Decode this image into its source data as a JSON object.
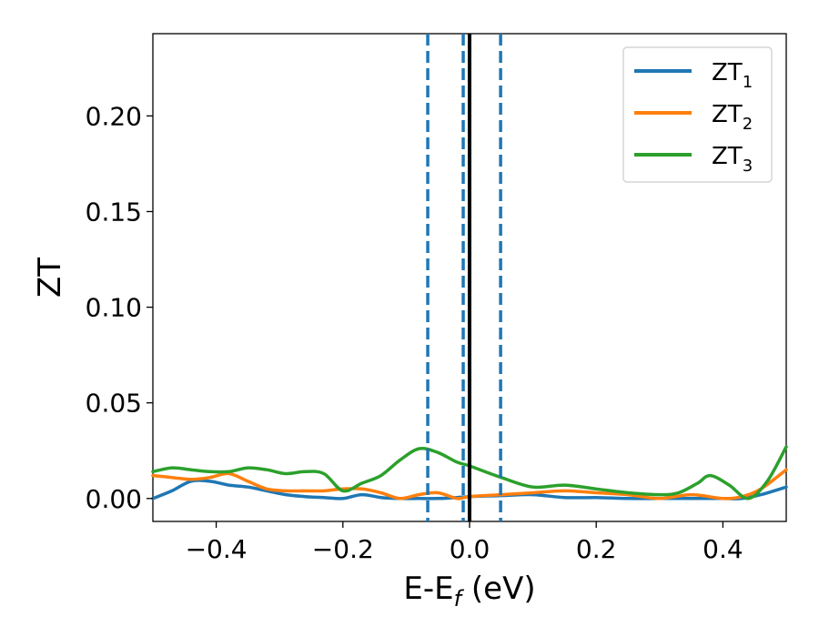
{
  "chart_data": {
    "type": "line",
    "xlabel": "E-E",
    "xlabel_subscript": "f",
    "xlabel_unit": " (eV)",
    "ylabel": "ZT",
    "xlim": [
      -0.5,
      0.5
    ],
    "ylim": [
      -0.012,
      0.243
    ],
    "xticks": [
      -0.4,
      -0.2,
      0.0,
      0.2,
      0.4
    ],
    "xtick_labels": [
      "−0.4",
      "−0.2",
      "0.0",
      "0.2",
      "0.4"
    ],
    "yticks": [
      0.0,
      0.05,
      0.1,
      0.15,
      0.2
    ],
    "ytick_labels": [
      "0.00",
      "0.05",
      "0.10",
      "0.15",
      "0.20"
    ],
    "grid": false,
    "legend_position": "top-right",
    "vlines": [
      {
        "x": -0.066,
        "style": "dashed",
        "color": "#1f77b4"
      },
      {
        "x": -0.01,
        "style": "dashed",
        "color": "#1f77b4"
      },
      {
        "x": 0.049,
        "style": "dashed",
        "color": "#1f77b4"
      },
      {
        "x": 0.0,
        "style": "solid",
        "color": "#000000"
      }
    ],
    "series": [
      {
        "name": "ZT",
        "subscript": "1",
        "color": "#1f77b4",
        "x": [
          -0.5,
          -0.47,
          -0.44,
          -0.41,
          -0.38,
          -0.35,
          -0.32,
          -0.29,
          -0.26,
          -0.23,
          -0.2,
          -0.17,
          -0.14,
          -0.11,
          -0.08,
          -0.05,
          -0.02,
          0.0,
          0.05,
          0.1,
          0.15,
          0.2,
          0.25,
          0.3,
          0.35,
          0.4,
          0.43,
          0.46,
          0.5
        ],
        "y": [
          0.0,
          0.004,
          0.009,
          0.009,
          0.007,
          0.006,
          0.004,
          0.002,
          0.001,
          0.0005,
          0.0,
          0.002,
          0.0005,
          0.0,
          0.0,
          0.0,
          0.0005,
          0.001,
          0.0015,
          0.002,
          0.0005,
          0.0005,
          0.0,
          0.0,
          0.0,
          0.0,
          0.0,
          0.002,
          0.006
        ]
      },
      {
        "name": "ZT",
        "subscript": "2",
        "color": "#ff7f0e",
        "x": [
          -0.5,
          -0.47,
          -0.44,
          -0.41,
          -0.38,
          -0.35,
          -0.32,
          -0.29,
          -0.26,
          -0.23,
          -0.2,
          -0.17,
          -0.14,
          -0.11,
          -0.08,
          -0.05,
          -0.02,
          0.0,
          0.05,
          0.1,
          0.15,
          0.2,
          0.25,
          0.3,
          0.35,
          0.4,
          0.43,
          0.46,
          0.5
        ],
        "y": [
          0.012,
          0.011,
          0.01,
          0.011,
          0.013,
          0.009,
          0.005,
          0.004,
          0.004,
          0.004,
          0.005,
          0.005,
          0.003,
          0.0,
          0.002,
          0.003,
          0.0,
          0.001,
          0.002,
          0.003,
          0.004,
          0.003,
          0.002,
          0.0,
          0.002,
          0.0,
          0.001,
          0.005,
          0.015
        ]
      },
      {
        "name": "ZT",
        "subscript": "3",
        "color": "#2ca02c",
        "x": [
          -0.5,
          -0.47,
          -0.44,
          -0.41,
          -0.38,
          -0.35,
          -0.32,
          -0.29,
          -0.26,
          -0.23,
          -0.2,
          -0.17,
          -0.14,
          -0.11,
          -0.08,
          -0.05,
          -0.02,
          0.0,
          0.05,
          0.1,
          0.15,
          0.2,
          0.25,
          0.3,
          0.33,
          0.36,
          0.38,
          0.41,
          0.44,
          0.47,
          0.5
        ],
        "y": [
          0.014,
          0.016,
          0.015,
          0.014,
          0.014,
          0.016,
          0.015,
          0.013,
          0.014,
          0.013,
          0.004,
          0.008,
          0.012,
          0.02,
          0.026,
          0.024,
          0.019,
          0.017,
          0.011,
          0.006,
          0.007,
          0.005,
          0.003,
          0.002,
          0.003,
          0.008,
          0.012,
          0.007,
          0.0,
          0.009,
          0.027
        ]
      }
    ]
  }
}
